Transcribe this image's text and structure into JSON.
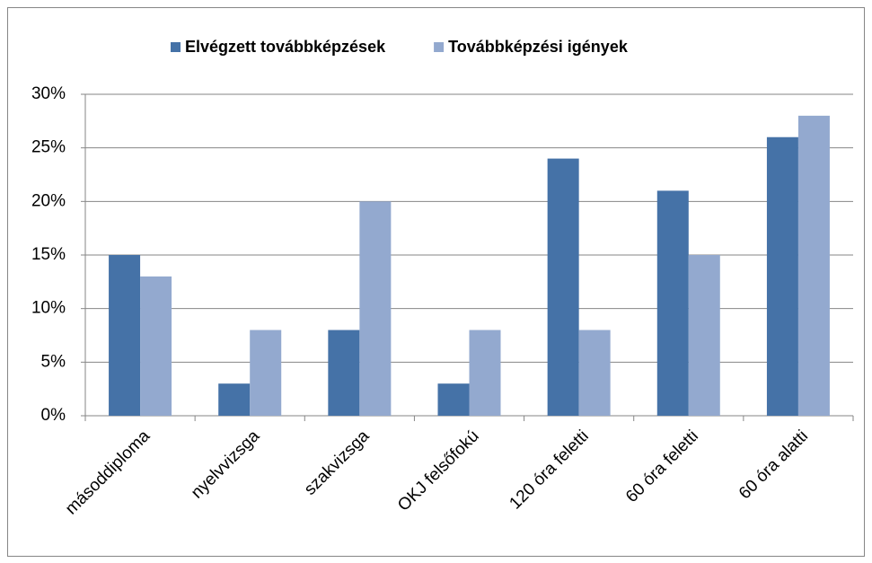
{
  "chart_data": {
    "type": "bar",
    "categories": [
      "másoddiploma",
      "nyelvvizsga",
      "szakvizsga",
      "OKJ felsőfokú",
      "120 óra feletti",
      "60 óra feletti",
      "60 óra alatti"
    ],
    "series": [
      {
        "name": "Elvégzett továbbképzések",
        "color": "#4572a7",
        "values": [
          15,
          3,
          8,
          3,
          24,
          21,
          26
        ]
      },
      {
        "name": "Továbbképzési igények",
        "color": "#93a9cf",
        "values": [
          13,
          8,
          20,
          8,
          8,
          15,
          28
        ]
      }
    ],
    "ylim": [
      0,
      30
    ],
    "yticks": [
      {
        "value": 0,
        "label": "0%"
      },
      {
        "value": 5,
        "label": "5%"
      },
      {
        "value": 10,
        "label": "10%"
      },
      {
        "value": 15,
        "label": "15%"
      },
      {
        "value": 20,
        "label": "20%"
      },
      {
        "value": 25,
        "label": "25%"
      },
      {
        "value": 30,
        "label": "30%"
      }
    ],
    "grid": true,
    "legend": "top"
  }
}
